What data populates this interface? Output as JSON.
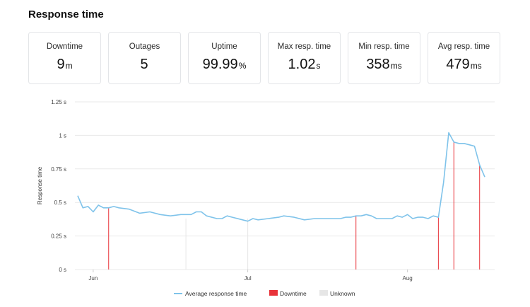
{
  "page": {
    "title": "Response time"
  },
  "stats": [
    {
      "label": "Downtime",
      "value": "9",
      "unit": "m"
    },
    {
      "label": "Outages",
      "value": "5",
      "unit": ""
    },
    {
      "label": "Uptime",
      "value": "99.99",
      "unit": "%"
    },
    {
      "label": "Max resp. time",
      "value": "1.02",
      "unit": "s"
    },
    {
      "label": "Min resp. time",
      "value": "358",
      "unit": "ms"
    },
    {
      "label": "Avg resp. time",
      "value": "479",
      "unit": "ms"
    }
  ],
  "colors": {
    "line": "#7fc3ea",
    "downtime": "#e8333a",
    "unknown": "#e6e6e6",
    "grid": "#e9e9e9"
  },
  "chart_data": {
    "type": "line",
    "ylabel": "Response time",
    "ylim": [
      0,
      1.25
    ],
    "yticks": [
      {
        "value": 0,
        "label": "0 s"
      },
      {
        "value": 0.25,
        "label": "0.25 s"
      },
      {
        "value": 0.5,
        "label": "0.5 s"
      },
      {
        "value": 0.75,
        "label": "0.75 s"
      },
      {
        "value": 1,
        "label": "1 s"
      },
      {
        "value": 1.25,
        "label": "1.25 s"
      }
    ],
    "xlim": [
      "2020-05-29",
      "2020-08-16"
    ],
    "xticks": [
      {
        "date": "2020-06-01",
        "label": "Jun"
      },
      {
        "date": "2020-07-01",
        "label": "Jul"
      },
      {
        "date": "2020-08-01",
        "label": "Aug"
      }
    ],
    "series": [
      {
        "name": "Average response time",
        "points": [
          [
            "2020-05-29",
            0.55
          ],
          [
            "2020-05-30",
            0.46
          ],
          [
            "2020-05-31",
            0.47
          ],
          [
            "2020-06-01",
            0.43
          ],
          [
            "2020-06-02",
            0.48
          ],
          [
            "2020-06-03",
            0.46
          ],
          [
            "2020-06-04",
            0.46
          ],
          [
            "2020-06-05",
            0.47
          ],
          [
            "2020-06-06",
            0.46
          ],
          [
            "2020-06-08",
            0.45
          ],
          [
            "2020-06-10",
            0.42
          ],
          [
            "2020-06-12",
            0.43
          ],
          [
            "2020-06-14",
            0.41
          ],
          [
            "2020-06-16",
            0.4
          ],
          [
            "2020-06-18",
            0.41
          ],
          [
            "2020-06-20",
            0.41
          ],
          [
            "2020-06-21",
            0.43
          ],
          [
            "2020-06-22",
            0.43
          ],
          [
            "2020-06-23",
            0.4
          ],
          [
            "2020-06-25",
            0.38
          ],
          [
            "2020-06-26",
            0.38
          ],
          [
            "2020-06-27",
            0.4
          ],
          [
            "2020-06-28",
            0.39
          ],
          [
            "2020-06-30",
            0.37
          ],
          [
            "2020-07-01",
            0.36
          ],
          [
            "2020-07-02",
            0.38
          ],
          [
            "2020-07-03",
            0.37
          ],
          [
            "2020-07-05",
            0.38
          ],
          [
            "2020-07-07",
            0.39
          ],
          [
            "2020-07-08",
            0.4
          ],
          [
            "2020-07-10",
            0.39
          ],
          [
            "2020-07-12",
            0.37
          ],
          [
            "2020-07-14",
            0.38
          ],
          [
            "2020-07-17",
            0.38
          ],
          [
            "2020-07-19",
            0.38
          ],
          [
            "2020-07-20",
            0.39
          ],
          [
            "2020-07-21",
            0.39
          ],
          [
            "2020-07-22",
            0.4
          ],
          [
            "2020-07-23",
            0.4
          ],
          [
            "2020-07-24",
            0.41
          ],
          [
            "2020-07-25",
            0.4
          ],
          [
            "2020-07-26",
            0.38
          ],
          [
            "2020-07-27",
            0.38
          ],
          [
            "2020-07-28",
            0.38
          ],
          [
            "2020-07-29",
            0.38
          ],
          [
            "2020-07-30",
            0.4
          ],
          [
            "2020-07-31",
            0.39
          ],
          [
            "2020-08-01",
            0.41
          ],
          [
            "2020-08-02",
            0.38
          ],
          [
            "2020-08-03",
            0.39
          ],
          [
            "2020-08-04",
            0.39
          ],
          [
            "2020-08-05",
            0.38
          ],
          [
            "2020-08-06",
            0.4
          ],
          [
            "2020-08-07",
            0.39
          ],
          [
            "2020-08-08",
            0.65
          ],
          [
            "2020-08-09",
            1.02
          ],
          [
            "2020-08-10",
            0.95
          ],
          [
            "2020-08-11",
            0.94
          ],
          [
            "2020-08-12",
            0.94
          ],
          [
            "2020-08-13",
            0.93
          ],
          [
            "2020-08-14",
            0.92
          ],
          [
            "2020-08-15",
            0.78
          ],
          [
            "2020-08-16",
            0.69
          ]
        ]
      }
    ],
    "downtime_markers": [
      "2020-06-04",
      "2020-07-22",
      "2020-08-07",
      "2020-08-10",
      "2020-08-15"
    ],
    "unknown_markers": [
      "2020-06-19",
      "2020-07-01"
    ],
    "legend": [
      {
        "label": "Average response time",
        "kind": "line"
      },
      {
        "label": "Downtime",
        "kind": "downtime"
      },
      {
        "label": "Unknown",
        "kind": "unknown"
      }
    ],
    "legend_position": "bottom-center",
    "grid": true
  }
}
